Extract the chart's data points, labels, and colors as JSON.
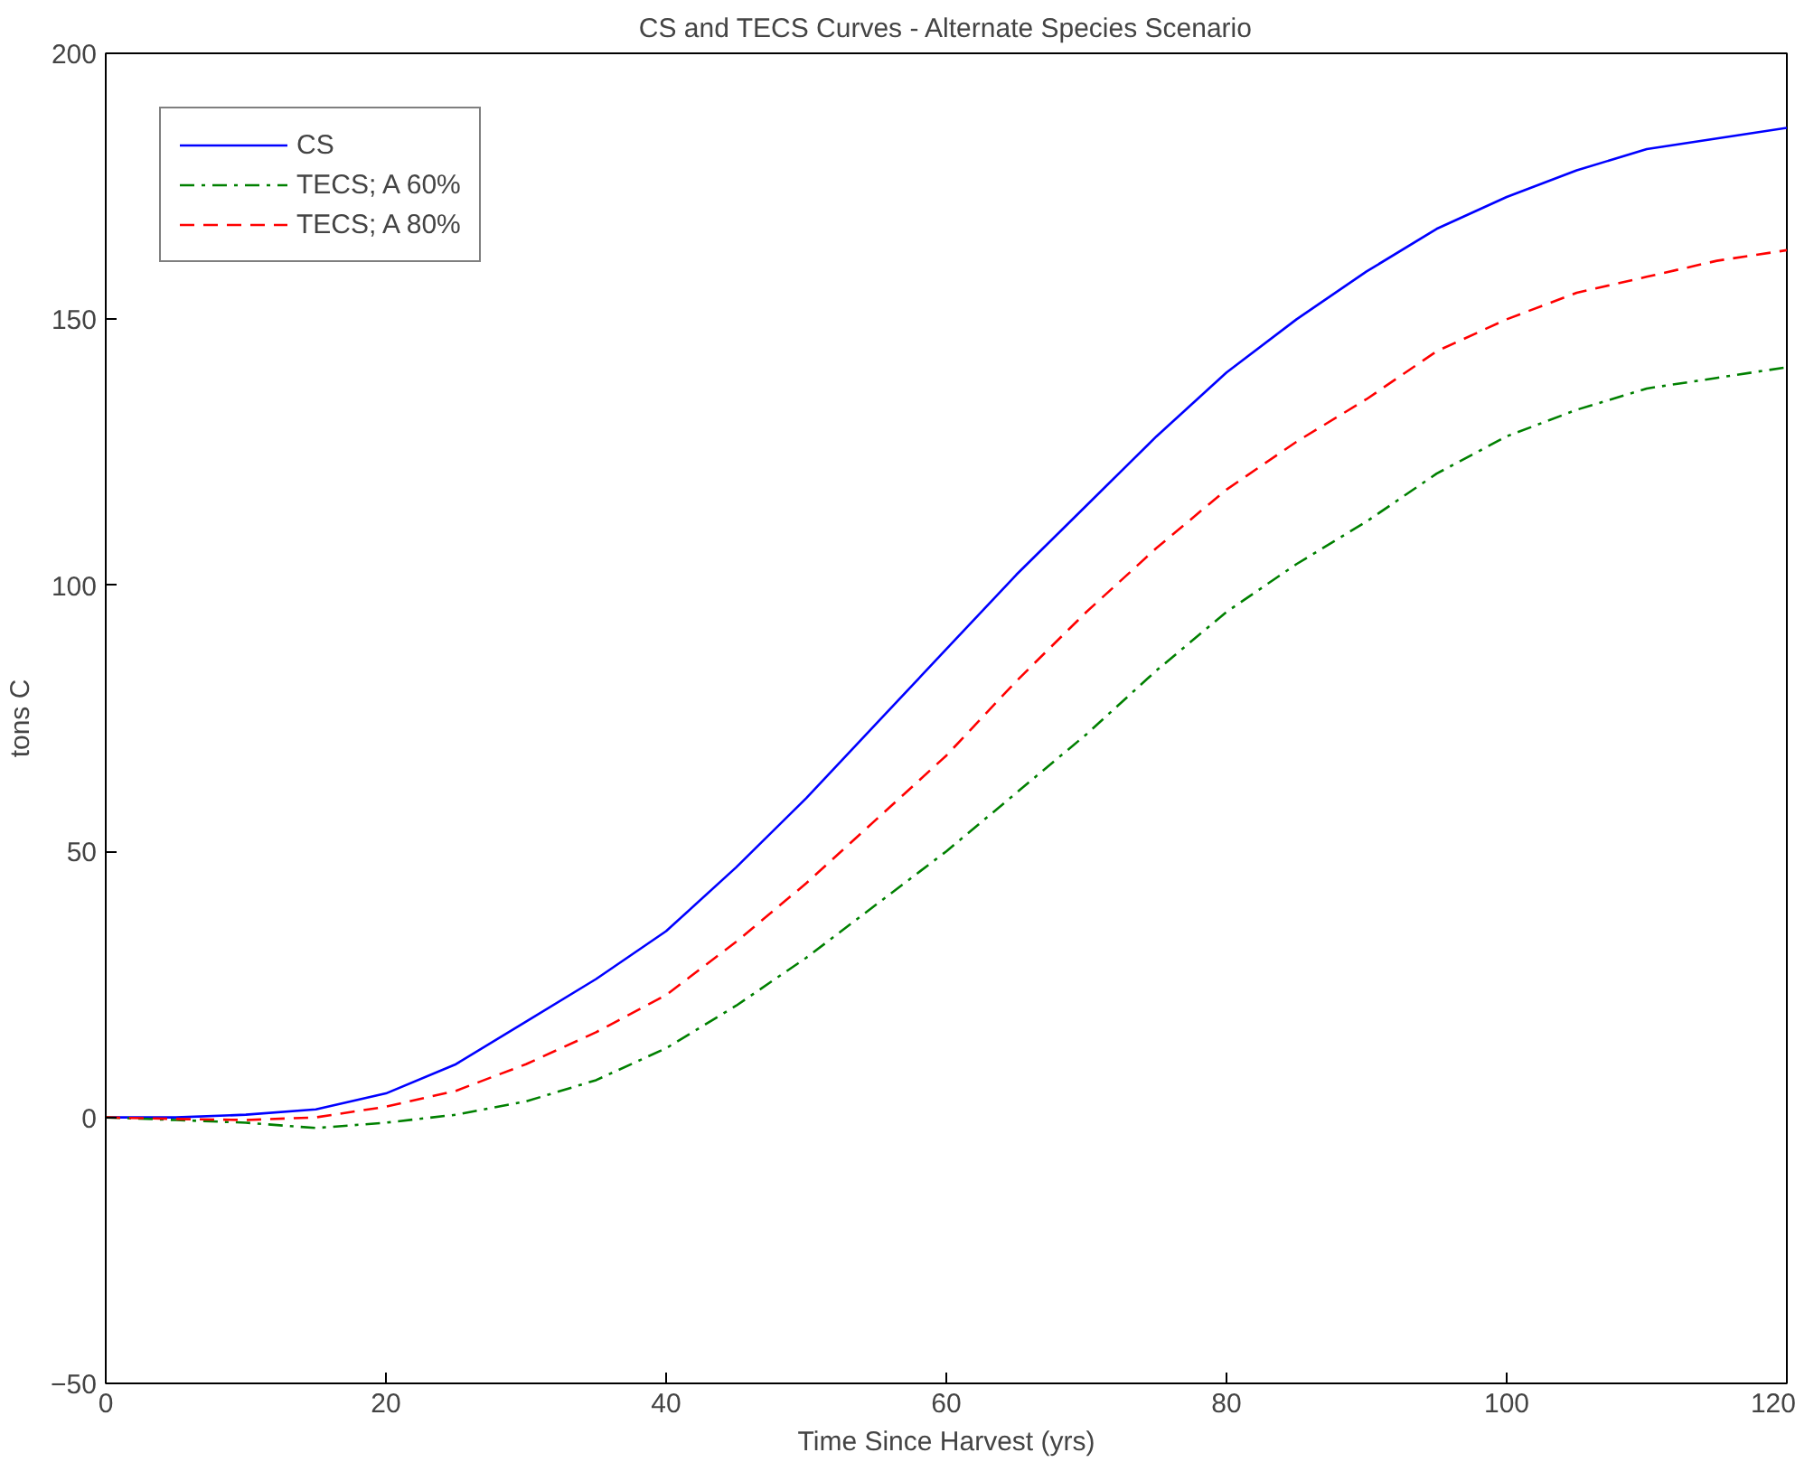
{
  "chart_data": {
    "type": "line",
    "title": "CS and TECS Curves - Alternate Species Scenario",
    "xlabel": "Time Since Harvest (yrs)",
    "ylabel": "tons C",
    "x": [
      0,
      5,
      10,
      15,
      20,
      25,
      30,
      35,
      40,
      45,
      50,
      55,
      60,
      65,
      70,
      75,
      80,
      85,
      90,
      95,
      100,
      105,
      110,
      115,
      120
    ],
    "series": [
      {
        "name": "CS",
        "color": "#0000ff",
        "line_style": "solid",
        "values": [
          0,
          0,
          0.5,
          1.5,
          4.5,
          10,
          18,
          26,
          35,
          47,
          60,
          74,
          88,
          102,
          115,
          128,
          140,
          150,
          159,
          167,
          173,
          178,
          182,
          184,
          186
        ]
      },
      {
        "name": "TECS; A 60%",
        "color": "#008000",
        "line_style": "dashdot",
        "values": [
          0,
          -0.5,
          -1,
          -2,
          -1,
          0.5,
          3,
          7,
          13,
          21,
          30,
          40,
          50,
          61,
          72,
          84,
          95,
          104,
          112,
          121,
          128,
          133,
          137,
          139,
          141
        ]
      },
      {
        "name": "TECS; A 80%",
        "color": "#ff0000",
        "line_style": "dashed",
        "values": [
          0,
          -0.3,
          -0.5,
          0,
          2,
          5,
          10,
          16,
          23,
          33,
          44,
          56,
          68,
          82,
          95,
          107,
          118,
          127,
          135,
          144,
          150,
          155,
          158,
          161,
          163
        ]
      }
    ],
    "xlim": [
      0,
      120
    ],
    "ylim": [
      -50,
      200
    ],
    "xticks": [
      0,
      20,
      40,
      60,
      80,
      100,
      120
    ],
    "yticks": [
      -50,
      0,
      50,
      100,
      150,
      200
    ],
    "legend": "top left",
    "grid": false
  }
}
